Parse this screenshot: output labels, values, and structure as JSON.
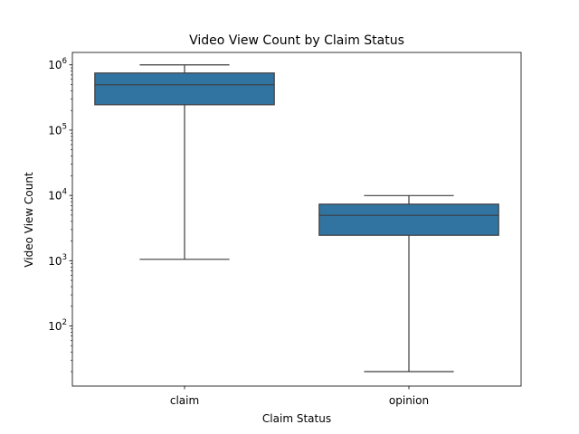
{
  "chart_data": {
    "type": "box",
    "title": "Video View Count by Claim Status",
    "xlabel": "Claim Status",
    "ylabel": "Video View Count",
    "yscale": "log",
    "ylim": [
      12,
      1550000
    ],
    "grid": false,
    "categories": [
      "claim",
      "opinion"
    ],
    "boxes": [
      {
        "category": "claim",
        "whisker_low": 1050,
        "q1": 245000,
        "median": 495000,
        "q3": 750000,
        "whisker_high": 1000000
      },
      {
        "category": "opinion",
        "whisker_low": 20,
        "q1": 2450,
        "median": 4950,
        "q3": 7350,
        "whisker_high": 9950
      }
    ],
    "y_ticks": [
      {
        "value": 100,
        "base": "10",
        "exp": "2"
      },
      {
        "value": 1000,
        "base": "10",
        "exp": "3"
      },
      {
        "value": 10000,
        "base": "10",
        "exp": "4"
      },
      {
        "value": 100000,
        "base": "10",
        "exp": "5"
      },
      {
        "value": 1000000,
        "base": "10",
        "exp": "6"
      }
    ],
    "colors": {
      "box_fill": "#3274a1",
      "line": "#3d3d3d",
      "axes": "#000000"
    }
  }
}
